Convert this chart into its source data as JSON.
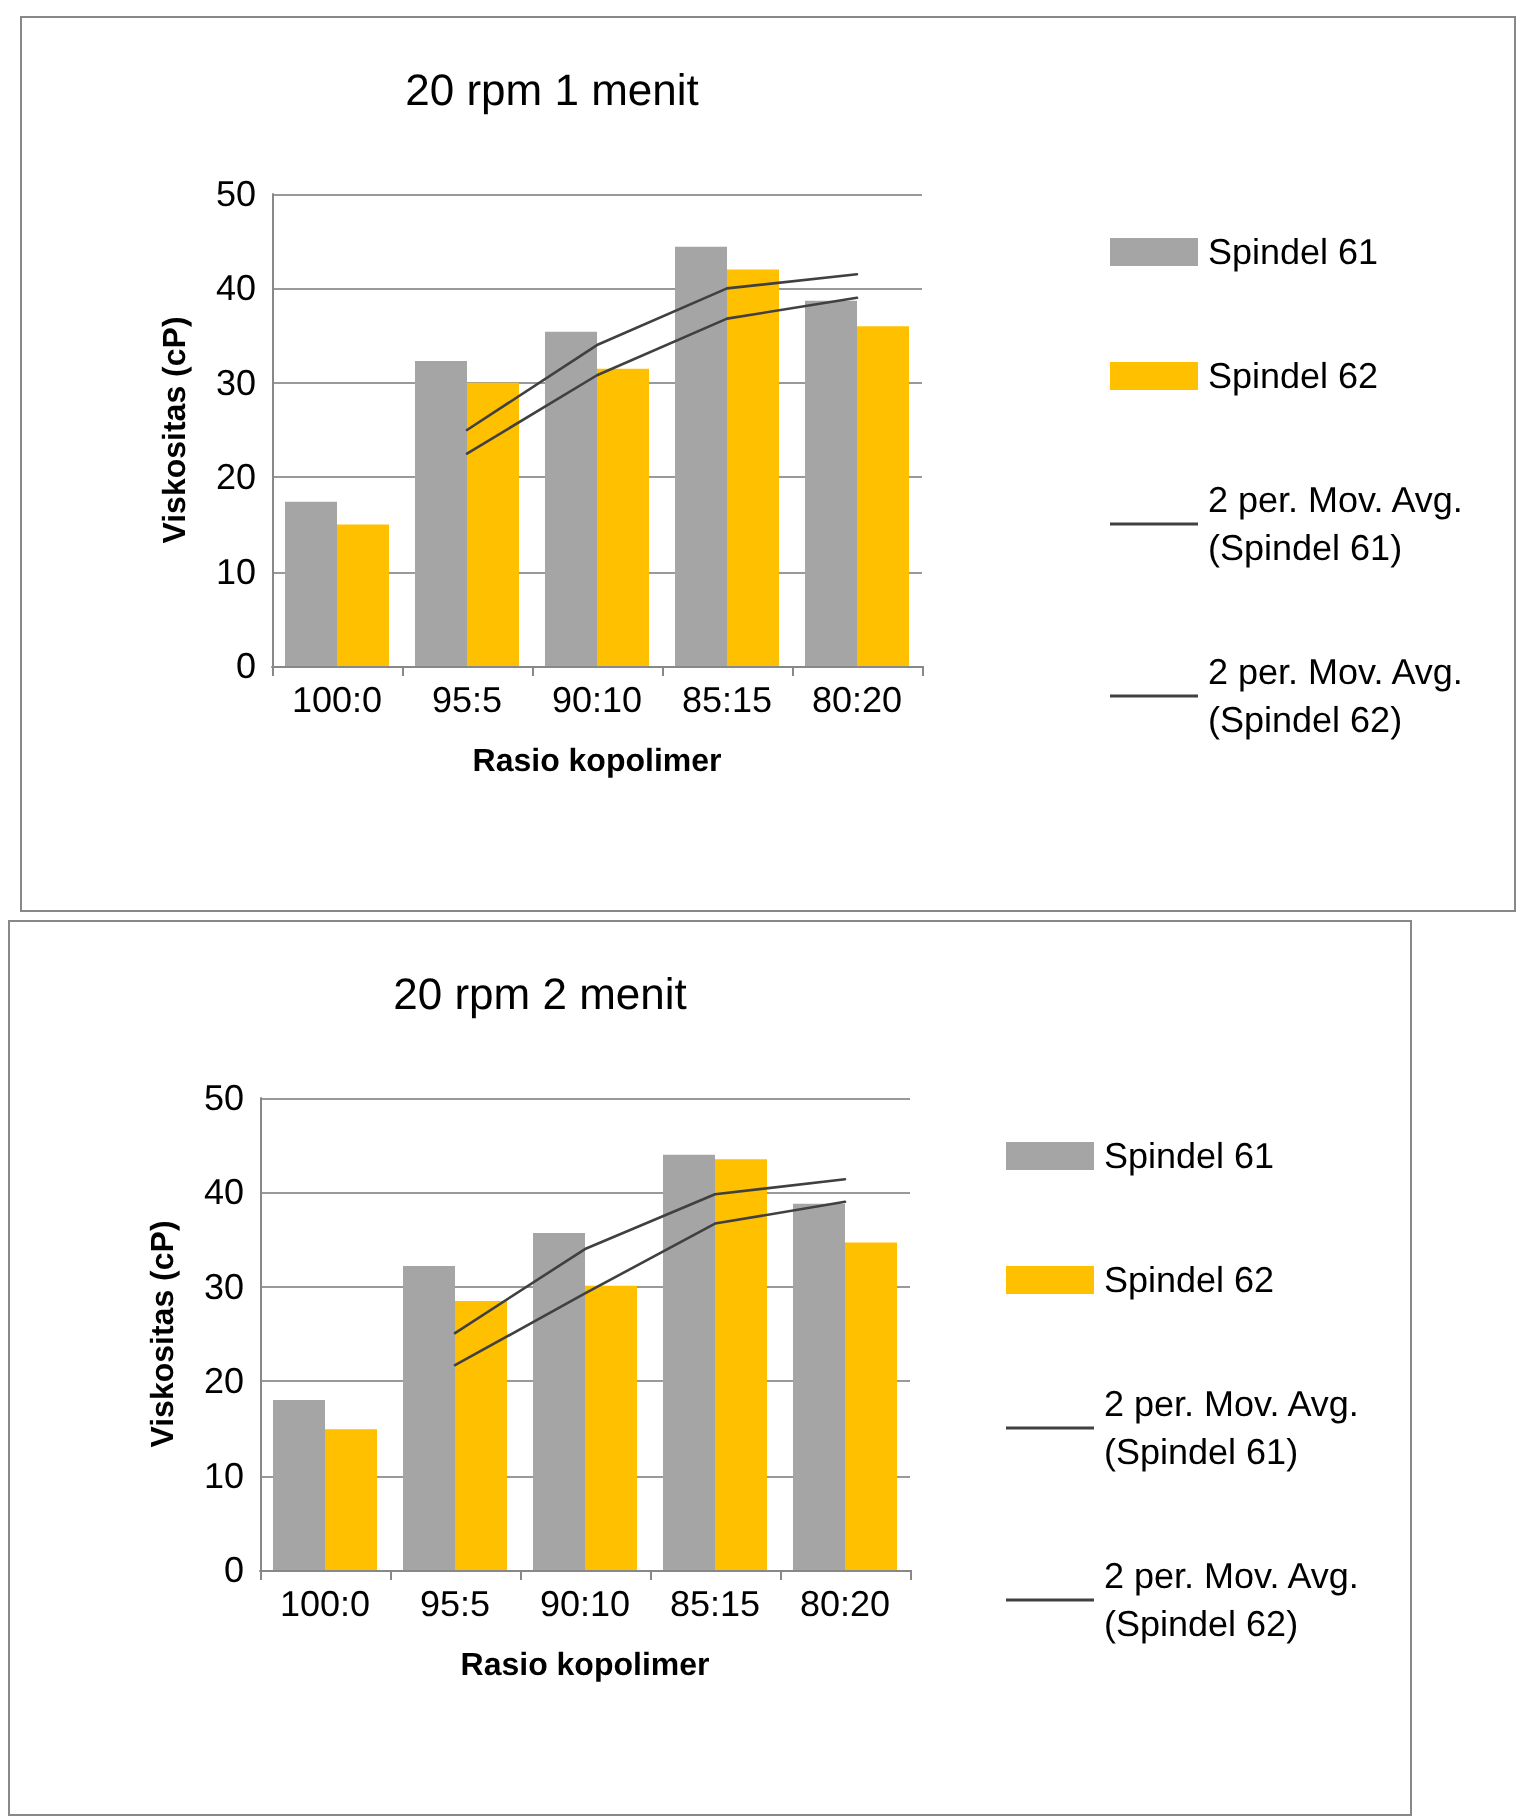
{
  "chart_data": [
    {
      "type": "bar",
      "title": "20 rpm 1 menit",
      "xlabel": "Rasio kopolimer",
      "ylabel": "Viskositas (cP)",
      "categories": [
        "100:0",
        "95:5",
        "90:10",
        "85:15",
        "80:20"
      ],
      "ylim": [
        0,
        50
      ],
      "yticks": [
        0,
        10,
        20,
        30,
        40,
        50
      ],
      "grid": "y",
      "legend": "right",
      "series": [
        {
          "name": "Spindel 61",
          "color": "#a5a5a5",
          "values": [
            17.4,
            32.3,
            35.4,
            44.4,
            38.7
          ]
        },
        {
          "name": "Spindel 62",
          "color": "#ffc000",
          "values": [
            15,
            30,
            31.5,
            42,
            36
          ]
        },
        {
          "name": "2 per. Mov. Avg. (Spindel 61)",
          "type": "line",
          "color": "#404040",
          "marker": "none",
          "values": [
            null,
            25,
            34,
            40,
            41.5
          ]
        },
        {
          "name": "2 per. Mov. Avg. (Spindel 62)",
          "type": "line",
          "color": "#404040",
          "marker": "none",
          "values": [
            null,
            22.5,
            30.8,
            36.8,
            39
          ]
        }
      ]
    },
    {
      "type": "bar",
      "title": "20 rpm 2 menit",
      "xlabel": "Rasio kopolimer",
      "ylabel": "Viskositas (cP)",
      "categories": [
        "100:0",
        "95:5",
        "90:10",
        "85:15",
        "80:20"
      ],
      "ylim": [
        0,
        50
      ],
      "yticks": [
        0,
        10,
        20,
        30,
        40,
        50
      ],
      "grid": "y",
      "legend": "right",
      "series": [
        {
          "name": "Spindel 61",
          "color": "#a5a5a5",
          "values": [
            18,
            32.2,
            35.7,
            44,
            38.8
          ]
        },
        {
          "name": "Spindel 62",
          "color": "#ffc000",
          "values": [
            14.9,
            28.5,
            30.1,
            43.5,
            34.7
          ]
        },
        {
          "name": "2 per. Mov. Avg. (Spindel 61)",
          "type": "line",
          "color": "#404040",
          "marker": "none",
          "values": [
            null,
            25.1,
            34,
            39.8,
            41.4
          ]
        },
        {
          "name": "2 per. Mov. Avg. (Spindel 62)",
          "type": "line",
          "color": "#404040",
          "marker": "none",
          "values": [
            null,
            21.7,
            29.3,
            36.7,
            39
          ]
        }
      ]
    }
  ]
}
